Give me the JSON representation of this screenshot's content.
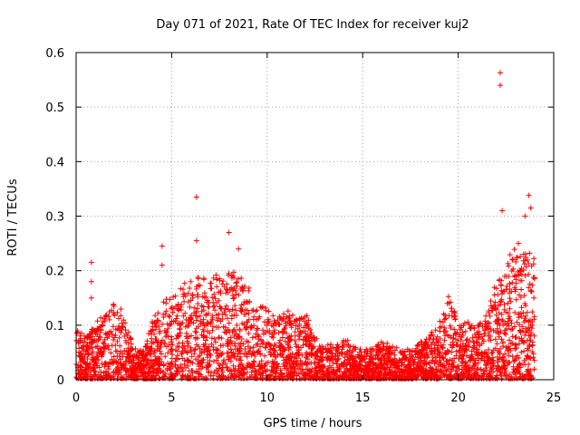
{
  "chart_data": {
    "type": "scatter",
    "title": "Day 071 of 2021, Rate Of TEC Index for receiver kuj2",
    "xlabel": "GPS time / hours",
    "ylabel": "ROTI / TECUs",
    "xlim": [
      0,
      25
    ],
    "ylim": [
      0,
      0.6
    ],
    "xticks": [
      0,
      5,
      10,
      15,
      20,
      25
    ],
    "yticks": [
      0,
      0.1,
      0.2,
      0.3,
      0.4,
      0.5,
      0.6
    ],
    "xtick_labels": [
      "0",
      "5",
      "10",
      "15",
      "20",
      "25"
    ],
    "ytick_labels": [
      "0",
      "0.1",
      "0.2",
      "0.3",
      "0.4",
      "0.5",
      "0.6"
    ],
    "grid": true,
    "marker": "+",
    "color": "#ff0000",
    "x_coverage_hours": [
      0,
      24
    ],
    "envelope": {
      "description": "approximate upper extent of the dense ROTI cloud by hour",
      "x": [
        0,
        0.5,
        1,
        1.5,
        2,
        2.5,
        3,
        3.5,
        4,
        4.5,
        5,
        5.5,
        6,
        6.5,
        7,
        7.5,
        8,
        8.5,
        9,
        9.5,
        10,
        10.5,
        11,
        11.5,
        12,
        12.5,
        13,
        13.5,
        14,
        14.5,
        15,
        15.5,
        16,
        16.5,
        17,
        17.5,
        18,
        18.5,
        19,
        19.5,
        20,
        20.5,
        21,
        21.5,
        22,
        22.5,
        23,
        23.5,
        24
      ],
      "y": [
        0.09,
        0.08,
        0.1,
        0.12,
        0.14,
        0.13,
        0.06,
        0.05,
        0.11,
        0.14,
        0.16,
        0.17,
        0.18,
        0.19,
        0.19,
        0.2,
        0.2,
        0.19,
        0.17,
        0.15,
        0.13,
        0.12,
        0.13,
        0.11,
        0.12,
        0.08,
        0.06,
        0.06,
        0.07,
        0.07,
        0.05,
        0.06,
        0.07,
        0.06,
        0.06,
        0.05,
        0.07,
        0.08,
        0.1,
        0.16,
        0.1,
        0.11,
        0.1,
        0.12,
        0.18,
        0.21,
        0.25,
        0.25,
        0.22
      ]
    },
    "outliers": {
      "x": [
        0.8,
        0.8,
        0.8,
        4.5,
        4.5,
        6.3,
        6.3,
        8.0,
        8.5,
        22.2,
        22.2,
        23.7,
        23.8,
        22.3,
        23.5
      ],
      "y": [
        0.215,
        0.18,
        0.15,
        0.245,
        0.21,
        0.335,
        0.255,
        0.27,
        0.24,
        0.563,
        0.54,
        0.338,
        0.315,
        0.31,
        0.3
      ]
    }
  }
}
